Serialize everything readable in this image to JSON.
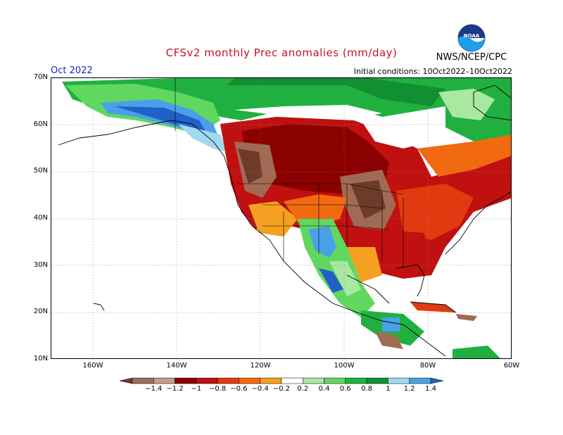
{
  "title": "CFSv2 monthly Prec anomalies (mm/day)",
  "month": "Oct 2022",
  "initial_conditions": "Initial conditions: 10Oct2022–10Oct2022",
  "agency": "NWS/NCEP/CPC",
  "logo_text": "NOAA",
  "lat_labels": [
    "70N",
    "60N",
    "50N",
    "40N",
    "30N",
    "20N",
    "10N"
  ],
  "lon_labels": [
    "160W",
    "140W",
    "120W",
    "100W",
    "80W",
    "60W"
  ],
  "colorbar": {
    "labels": [
      "−1.4",
      "−1.2",
      "−1",
      "−0.8",
      "−0.6",
      "−0.4",
      "−0.2",
      "0.2",
      "0.4",
      "0.6",
      "0.8",
      "1",
      "1.2",
      "1.4"
    ],
    "colors": [
      "#6e3b2a",
      "#a06a55",
      "#c89a88",
      "#8b0000",
      "#c01010",
      "#e23a10",
      "#f26a10",
      "#f5a020",
      "#ffffff",
      "#a8e8a0",
      "#60d860",
      "#20b040",
      "#109030",
      "#a0d8f0",
      "#4aa0e8",
      "#2060c8"
    ]
  },
  "anomaly_palette": {
    "brown_dark": "#6e3b2a",
    "brown": "#a06a55",
    "tan": "#c89a88",
    "red_dark": "#8b0000",
    "red": "#c01010",
    "red_orange": "#e23a10",
    "orange": "#f26a10",
    "yellow_orange": "#f5a020",
    "green_light": "#a8e8a0",
    "green": "#60d860",
    "green_mid": "#20b040",
    "green_dark": "#109030",
    "blue_light": "#a0d8f0",
    "blue": "#4aa0e8",
    "blue_dark": "#2060c8"
  }
}
